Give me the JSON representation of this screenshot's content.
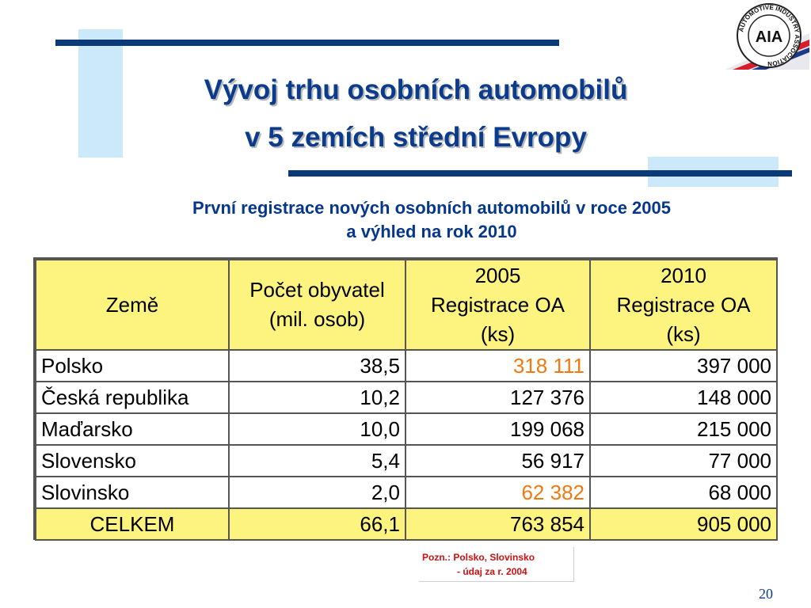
{
  "title": {
    "line1": "Vývoj trhu osobních automobilů",
    "line2": "v 5 zemích střední Evropy"
  },
  "subtitle": {
    "line1": "První registrace nových osobních automobilů v roce 2005",
    "line2": "a výhled na rok 2010"
  },
  "logo": {
    "text": "AIA",
    "ring_text": "AUTOMOTIVE INDUSTRY ASSOCIATION"
  },
  "table": {
    "headers": [
      [
        "Země"
      ],
      [
        "Počet obyvatel",
        "(mil. osob)"
      ],
      [
        "2005",
        "Registrace OA",
        "(ks)"
      ],
      [
        "2010",
        "Registrace OA",
        "(ks)"
      ]
    ],
    "rows": [
      {
        "country": "Polsko",
        "population": "38,5",
        "reg2005": "318 111",
        "reg2010": "397 000",
        "highlight2005": true
      },
      {
        "country": "Česká republika",
        "population": "10,2",
        "reg2005": "127 376",
        "reg2010": "148 000",
        "highlight2005": false
      },
      {
        "country": "Maďarsko",
        "population": "10,0",
        "reg2005": "199 068",
        "reg2010": "215 000",
        "highlight2005": false
      },
      {
        "country": "Slovensko",
        "population": "5,4",
        "reg2005": "56 917",
        "reg2010": "77 000",
        "highlight2005": false
      },
      {
        "country": "Slovinsko",
        "population": "2,0",
        "reg2005": "62 382",
        "reg2010": "68 000",
        "highlight2005": true
      }
    ],
    "total": {
      "label": "CELKEM",
      "population": "66,1",
      "reg2005": "763 854",
      "reg2010": "905 000"
    }
  },
  "note": {
    "line1": "Pozn.: Polsko, Slovinsko",
    "line2": "- údaj za r. 2004"
  },
  "page_number": "20",
  "colors": {
    "title": "#0a3b8c",
    "accent_line": "#0a3a78",
    "accent_square": "#cce8fb",
    "header_fill": "#fdf47f",
    "highlight": "#f07a10",
    "note_text": "#cc1111"
  }
}
